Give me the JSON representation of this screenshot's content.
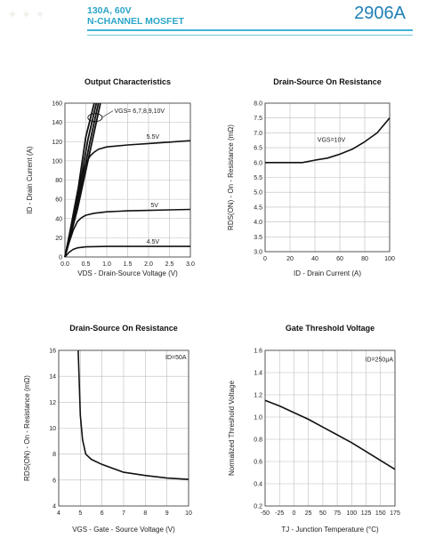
{
  "header": {
    "line1": "130A,  60V",
    "line2": "N-CHANNEL MOSFET",
    "part": "2906A",
    "accent": "#2aa6c8"
  },
  "chart_data": [
    {
      "type": "line",
      "title": "Output Characteristics",
      "xlabel": "VDS - Drain-Source Voltage (V)",
      "ylabel": "ID - Drain Current (A)",
      "xlim": [
        0,
        3.0
      ],
      "ylim": [
        0,
        160
      ],
      "xticks": [
        "0.0",
        "0.5",
        "1.0",
        "1.5",
        "2.0",
        "2.5",
        "3.0"
      ],
      "yticks": [
        "0",
        "20",
        "40",
        "60",
        "80",
        "100",
        "120",
        "140",
        "160"
      ],
      "grid": true,
      "annotations": [
        "VGS= 6,7,8,9,10V",
        "5.5V",
        "5V",
        "4.5V"
      ],
      "series": [
        {
          "name": "VGS= 6,7,8,9,10V",
          "x": [
            0,
            0.3,
            0.6,
            0.85
          ],
          "y": [
            0,
            50,
            110,
            162
          ]
        },
        {
          "name": "VGS= 6,7,8,9,10V",
          "x": [
            0,
            0.3,
            0.6,
            0.8
          ],
          "y": [
            0,
            55,
            120,
            162
          ]
        },
        {
          "name": "VGS= 6,7,8,9,10V",
          "x": [
            0,
            0.3,
            0.55,
            0.75
          ],
          "y": [
            0,
            60,
            122,
            162
          ]
        },
        {
          "name": "VGS= 6,7,8,9,10V",
          "x": [
            0,
            0.3,
            0.5,
            0.7
          ],
          "y": [
            0,
            66,
            125,
            162
          ]
        },
        {
          "name": "5.5V",
          "x": [
            0,
            0.1,
            0.2,
            0.3,
            0.4,
            0.5,
            0.6,
            0.7,
            0.8,
            1.0,
            1.5,
            2.0,
            2.5,
            3.0
          ],
          "y": [
            0,
            20,
            45,
            68,
            85,
            97,
            105,
            109,
            112,
            114.5,
            116.5,
            118,
            119.5,
            121
          ]
        },
        {
          "name": "5V",
          "x": [
            0,
            0.1,
            0.2,
            0.3,
            0.4,
            0.5,
            0.7,
            1.0,
            1.5,
            2.0,
            2.5,
            3.0
          ],
          "y": [
            0,
            15,
            28,
            37,
            41,
            43.5,
            45.5,
            47,
            48,
            48.5,
            49,
            49.5
          ]
        },
        {
          "name": "4.5V",
          "x": [
            0,
            0.1,
            0.2,
            0.3,
            0.5,
            1.0,
            1.5,
            2.0,
            2.5,
            3.0
          ],
          "y": [
            0,
            5,
            8,
            9.5,
            10.5,
            11,
            11,
            11,
            11,
            11
          ]
        }
      ]
    },
    {
      "type": "line",
      "title": "Drain-Source On Resistance",
      "xlabel": "ID - Drain Current (A)",
      "ylabel": "RDS(ON) - On - Resistance (mΩ)",
      "xlim": [
        0,
        100
      ],
      "ylim": [
        3.0,
        8.0
      ],
      "xticks": [
        "0",
        "20",
        "40",
        "60",
        "80",
        "100"
      ],
      "yticks": [
        "3.0",
        "3.5",
        "4.0",
        "4.5",
        "5.0",
        "5.5",
        "6.0",
        "6.5",
        "7.0",
        "7.5",
        "8.0"
      ],
      "grid": true,
      "annotations": [
        "VGS=10V"
      ],
      "series": [
        {
          "name": "VGS=10V",
          "x": [
            0,
            10,
            20,
            30,
            40,
            50,
            60,
            70,
            80,
            90,
            100
          ],
          "y": [
            6.0,
            6.0,
            6.0,
            6.0,
            6.08,
            6.15,
            6.28,
            6.45,
            6.7,
            7.0,
            7.5
          ]
        }
      ]
    },
    {
      "type": "line",
      "title": "Drain-Source On Resistance",
      "xlabel": "VGS - Gate - Source Voltage (V)",
      "ylabel": "RDS(ON) - On - Resistance (mΩ)",
      "xlim": [
        4,
        10
      ],
      "ylim": [
        4,
        16
      ],
      "xticks": [
        "4",
        "5",
        "6",
        "7",
        "8",
        "9",
        "10"
      ],
      "yticks": [
        "4",
        "6",
        "8",
        "10",
        "12",
        "14",
        "16"
      ],
      "grid": true,
      "annotations": [
        "ID=50A"
      ],
      "series": [
        {
          "name": "ID=50A",
          "x": [
            4.9,
            4.95,
            5.0,
            5.1,
            5.25,
            5.5,
            6.0,
            7.0,
            8.0,
            9.0,
            10.0
          ],
          "y": [
            16,
            13.5,
            11,
            9.1,
            8.0,
            7.6,
            7.2,
            6.6,
            6.35,
            6.15,
            6.05
          ]
        }
      ]
    },
    {
      "type": "line",
      "title": "Gate Threshold Voltage",
      "xlabel": "TJ - Junction Temperature (°C)",
      "ylabel": "Normalized Threshold Voltage",
      "xlim": [
        -50,
        175
      ],
      "ylim": [
        0.2,
        1.6
      ],
      "xticks": [
        "-50",
        "-25",
        "0",
        "25",
        "50",
        "75",
        "100",
        "125",
        "150",
        "175"
      ],
      "yticks": [
        "0.2",
        "0.4",
        "0.6",
        "0.8",
        "1.0",
        "1.2",
        "1.4",
        "1.6"
      ],
      "grid": true,
      "annotations": [
        "ID=250μA"
      ],
      "series": [
        {
          "name": "ID=250μA",
          "x": [
            -50,
            -25,
            0,
            25,
            50,
            75,
            100,
            125,
            150,
            175
          ],
          "y": [
            1.15,
            1.1,
            1.04,
            0.98,
            0.91,
            0.84,
            0.77,
            0.69,
            0.61,
            0.53
          ]
        }
      ]
    }
  ]
}
